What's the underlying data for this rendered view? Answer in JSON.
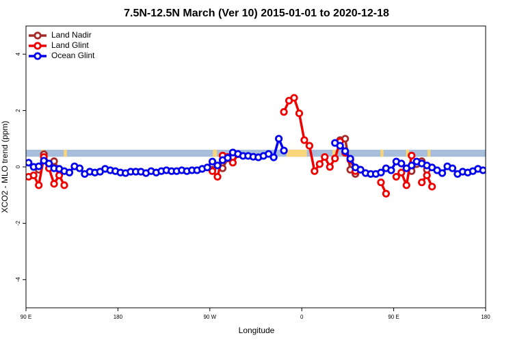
{
  "chart_data": {
    "type": "line",
    "title": "7.5N-12.5N March (Ver 10)   2015-01-01 to 2020-12-18",
    "xlabel": "Longitude",
    "ylabel": "XCO2 - MLO trend (ppm)",
    "xlim": [
      -270,
      180
    ],
    "xticks": [
      {
        "value": -270,
        "label": "90 E"
      },
      {
        "value": -180,
        "label": "180"
      },
      {
        "value": -90,
        "label": "90 W"
      },
      0,
      {
        "value": 90,
        "label": "90 E"
      },
      180
    ],
    "ylim": [
      -5,
      5
    ],
    "yticks": [
      -4,
      -2,
      0,
      2,
      4
    ],
    "legend": "top-left",
    "band": {
      "ylim": [
        0.36,
        0.61
      ],
      "color": "#a6bddb",
      "highlight_color": "#f7d57a",
      "highlights": [
        [
          -255,
          -252
        ],
        [
          -233,
          -230
        ],
        [
          -87,
          -83
        ],
        [
          -15,
          5
        ],
        [
          30,
          33
        ],
        [
          77,
          80
        ],
        [
          102,
          105
        ],
        [
          123,
          126
        ]
      ]
    },
    "series": [
      {
        "name": "Land Nadir",
        "color": "#a52a2a",
        "x": [
          -257.5,
          -252.5,
          -247.5,
          -242.5,
          -237.5,
          null,
          -87.5,
          -82.5,
          -77.5,
          -72.5,
          -67.5,
          null,
          37.5,
          42.5,
          47.5,
          52.5,
          null,
          107.5,
          112.5,
          117.5,
          122.5
        ],
        "values": [
          -0.1,
          0.45,
          0.1,
          0.2,
          -0.1,
          null,
          -0.1,
          0.05,
          -0.05,
          0.3,
          0.35,
          null,
          0.95,
          1.0,
          -0.1,
          -0.25,
          null,
          -0.15,
          0.1,
          0.2,
          -0.1
        ]
      },
      {
        "name": "Land Glint",
        "color": "#ee0000",
        "x": [
          -267.5,
          -262.5,
          -257.5,
          -252.5,
          -247.5,
          -242.5,
          -237.5,
          -232.5,
          null,
          -87.5,
          -82.5,
          -77.5,
          -72.5,
          -67.5,
          -62.5,
          null,
          -17.5,
          -12.5,
          -7.5,
          -2.5,
          2.5,
          7.5,
          12.5,
          17.5,
          22.5,
          27.5,
          32.5,
          37.5,
          42.5,
          47.5,
          52.5,
          null,
          77.5,
          82.5,
          null,
          92.5,
          97.5,
          102.5,
          107.5,
          null,
          117.5,
          122.5,
          127.5
        ],
        "values": [
          -0.35,
          -0.3,
          -0.65,
          0.35,
          -0.05,
          -0.6,
          -0.3,
          -0.65,
          null,
          -0.15,
          -0.35,
          0.4,
          0.35,
          0.15,
          0.45,
          null,
          1.95,
          2.35,
          2.45,
          1.9,
          0.95,
          0.75,
          -0.15,
          0.1,
          0.35,
          0.0,
          0.3,
          0.9,
          0.5,
          0.25,
          -0.15,
          null,
          -0.55,
          -0.95,
          null,
          -0.35,
          -0.2,
          -0.65,
          0.4,
          null,
          -0.55,
          -0.3,
          -0.7
        ]
      },
      {
        "name": "Ocean Glint",
        "color": "#0000ee",
        "x": [
          -267.5,
          -262.5,
          -257.5,
          -252.5,
          -247.5,
          -242.5,
          -237.5,
          -232.5,
          -227.5,
          -222.5,
          -217.5,
          -212.5,
          -207.5,
          -202.5,
          -197.5,
          -192.5,
          -187.5,
          -182.5,
          -177.5,
          -172.5,
          -167.5,
          -162.5,
          -157.5,
          -152.5,
          -147.5,
          -142.5,
          -137.5,
          -132.5,
          -127.5,
          -122.5,
          -117.5,
          -112.5,
          -107.5,
          -102.5,
          -97.5,
          -92.5,
          -87.5,
          -82.5,
          -77.5,
          -72.5,
          -67.5,
          -62.5,
          -57.5,
          -52.5,
          -47.5,
          -42.5,
          -37.5,
          -32.5,
          -27.5,
          -22.5,
          -17.5,
          null,
          32.5,
          37.5,
          42.5,
          47.5,
          52.5,
          57.5,
          62.5,
          67.5,
          72.5,
          77.5,
          82.5,
          87.5,
          92.5,
          97.5,
          102.5,
          107.5,
          112.5,
          117.5,
          122.5,
          127.5,
          132.5,
          137.5,
          142.5,
          147.5,
          152.5,
          157.5,
          162.5,
          167.5,
          172.5,
          177.5
        ],
        "values": [
          0.15,
          0.0,
          0.02,
          0.22,
          0.12,
          -0.05,
          -0.07,
          -0.15,
          -0.2,
          0.02,
          -0.05,
          -0.25,
          -0.17,
          -0.2,
          -0.17,
          -0.07,
          -0.12,
          -0.15,
          -0.2,
          -0.22,
          -0.17,
          -0.17,
          -0.17,
          -0.22,
          -0.15,
          -0.2,
          -0.15,
          -0.12,
          -0.15,
          -0.15,
          -0.12,
          -0.15,
          -0.12,
          -0.12,
          -0.07,
          -0.02,
          0.19,
          0.05,
          0.24,
          0.32,
          0.51,
          0.46,
          0.39,
          0.39,
          0.36,
          0.34,
          0.39,
          0.46,
          0.34,
          1.0,
          0.58,
          null,
          0.85,
          0.75,
          0.56,
          0.29,
          -0.02,
          -0.1,
          -0.22,
          -0.25,
          -0.25,
          -0.2,
          -0.05,
          -0.12,
          0.19,
          0.12,
          -0.05,
          0.05,
          0.19,
          0.12,
          0.05,
          -0.02,
          -0.12,
          -0.22,
          0.02,
          -0.05,
          -0.25,
          -0.17,
          -0.2,
          -0.15,
          -0.07,
          -0.12
        ]
      }
    ]
  }
}
